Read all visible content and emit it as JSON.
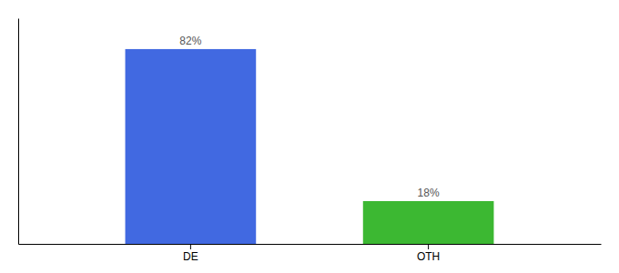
{
  "chart_data": {
    "type": "bar",
    "categories": [
      "DE",
      "OTH"
    ],
    "values": [
      82,
      18
    ],
    "value_labels": [
      "82%",
      "18%"
    ],
    "colors": [
      "#4169e1",
      "#3cb832"
    ],
    "ylim": [
      0,
      95
    ],
    "data_labels": true,
    "tick_labels": "x",
    "grid": false
  }
}
